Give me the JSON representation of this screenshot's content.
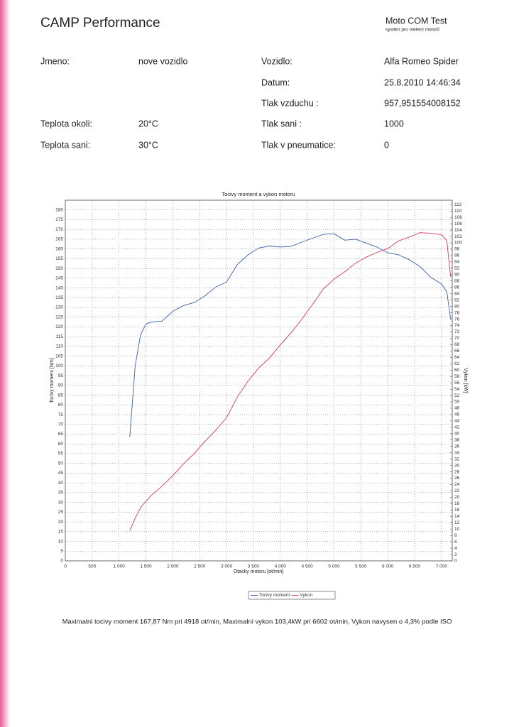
{
  "header": {
    "title": "CAMP Performance",
    "brand": "Moto COM Test",
    "brand_subtitle": "systém pro měření motorů"
  },
  "left_fields": [
    {
      "label": "Jmeno:",
      "value": "nove vozidlo"
    },
    {
      "label": "Teplota okoli:",
      "value": "20°C"
    },
    {
      "label": "Teplota sani:",
      "value": "30°C"
    }
  ],
  "right_fields": [
    {
      "label": "Vozidlo:",
      "value": "Alfa Romeo Spider"
    },
    {
      "label": "Datum:",
      "value": "25.8.2010 14:46:34"
    },
    {
      "label": "Tlak vzduchu :",
      "value": "957,951554008152"
    },
    {
      "label": "Tlak sani :",
      "value": "1000"
    },
    {
      "label": "Tlak v pneumatice:",
      "value": "0"
    }
  ],
  "chart_data": {
    "type": "line",
    "title": "Tocivy moment a vykon motoru",
    "x_label": "Otacky motoru [ot/min]",
    "y_label": "Tocivy moment [Nm]",
    "y2_label": "Vykon [kW]",
    "x": [
      1200,
      1300,
      1400,
      1500,
      1600,
      1800,
      2000,
      2200,
      2400,
      2600,
      2800,
      3000,
      3200,
      3400,
      3600,
      3800,
      4000,
      4200,
      4400,
      4600,
      4800,
      5000,
      5200,
      5400,
      5600,
      5800,
      6000,
      6200,
      6400,
      6600,
      6800,
      7000,
      7100,
      7170
    ],
    "series": [
      {
        "name": "Tocivy moment",
        "color": "#3a5fa8",
        "values": [
          63.6,
          100,
          116,
          121.5,
          122.5,
          123,
          128,
          131,
          132.5,
          136,
          140.5,
          143,
          152,
          157,
          160.5,
          161.5,
          161,
          161.3,
          163.5,
          165.5,
          167.5,
          167.8,
          164.5,
          165,
          163,
          161,
          158,
          157,
          154.5,
          151,
          145.5,
          142,
          138,
          124
        ]
      },
      {
        "name": "Vykon",
        "color": "#d8365e",
        "axis": "y2",
        "values": [
          9.5,
          13.4,
          16.8,
          18.7,
          20.6,
          23.5,
          26.8,
          30.5,
          33.8,
          37.6,
          41.1,
          45,
          51.5,
          56.5,
          60.7,
          63.8,
          67.9,
          71.7,
          76,
          80.6,
          85.5,
          88.6,
          90.9,
          93.6,
          95.5,
          97,
          98.2,
          100.6,
          101.8,
          103.2,
          103,
          102.6,
          100.6,
          89.3
        ]
      }
    ],
    "xlim": [
      0,
      7200
    ],
    "ylim": [
      0,
      185
    ],
    "y2lim": [
      0,
      113.4
    ],
    "xticks": [
      0,
      500,
      {
        "value": 1000,
        "label": "1 000"
      },
      {
        "value": 1500,
        "label": "1 500"
      },
      {
        "value": 2000,
        "label": "2 000"
      },
      {
        "value": 2500,
        "label": "2 500"
      },
      {
        "value": 3000,
        "label": "3 000"
      },
      {
        "value": 3500,
        "label": "3 500"
      },
      {
        "value": 4000,
        "label": "4 000"
      },
      {
        "value": 4500,
        "label": "4 500"
      },
      {
        "value": 5000,
        "label": "5 000"
      },
      {
        "value": 5500,
        "label": "5 500"
      },
      {
        "value": 6000,
        "label": "6 000"
      },
      {
        "value": 6500,
        "label": "6 500"
      },
      {
        "value": 7000,
        "label": "7 000"
      }
    ],
    "yticks": [
      0,
      5,
      10,
      15,
      20,
      25,
      30,
      35,
      40,
      45,
      50,
      55,
      60,
      65,
      70,
      75,
      80,
      85,
      90,
      95,
      100,
      105,
      110,
      115,
      120,
      125,
      130,
      135,
      140,
      145,
      150,
      155,
      160,
      165,
      170,
      175,
      180
    ],
    "y2ticks": [
      0,
      2,
      4,
      6,
      8,
      10,
      12,
      14,
      16,
      18,
      20,
      22,
      24,
      26,
      28,
      30,
      32,
      34,
      36,
      38,
      40,
      42,
      44,
      46,
      48,
      50,
      52,
      54,
      56,
      58,
      60,
      62,
      64,
      66,
      68,
      70,
      72,
      74,
      76,
      78,
      80,
      82,
      84,
      86,
      88,
      90,
      92,
      94,
      96,
      98,
      100,
      102,
      104,
      106,
      108,
      110,
      112
    ],
    "grid": true,
    "legend": "bottom"
  },
  "footer": "Maximalni tocivy moment 167,87 Nm pri 4918 ot/min,  Maximalni vykon 103,4kW pri 6602 ot/min,  Vykon navysen o 4,3% podle ISO"
}
